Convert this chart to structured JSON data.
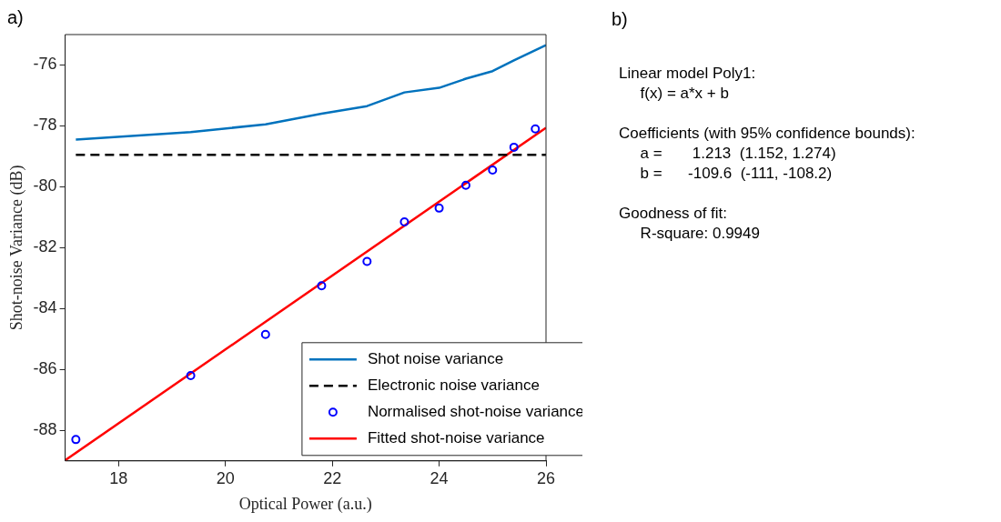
{
  "chart_data": {
    "type": "line",
    "xlabel": "Optical Power (a.u.)",
    "ylabel": "Shot-noise Variance (dB)",
    "xlim": [
      17,
      26
    ],
    "xticks": [
      18,
      20,
      22,
      24,
      26
    ],
    "ylim": [
      -89,
      -75
    ],
    "yticks": [
      -88,
      -86,
      -84,
      -82,
      -80,
      -78,
      -76
    ],
    "grid": false,
    "legend": "bottom right",
    "series": [
      {
        "name": "Shot noise variance",
        "color": "#0072bd",
        "line_style": "solid",
        "marker": "none",
        "x": [
          17.2,
          19.35,
          20.75,
          21.8,
          22.65,
          23.35,
          24,
          24.5,
          25,
          25.4,
          26
        ],
        "values": [
          -78.45,
          -78.2,
          -77.95,
          -77.6,
          -77.35,
          -76.9,
          -76.75,
          -76.45,
          -76.2,
          -75.85,
          -75.35
        ]
      },
      {
        "name": "Electronic noise variance",
        "color": "#000000",
        "line_style": "dashed",
        "marker": "none",
        "x": [
          17.2,
          26
        ],
        "values": [
          -78.95,
          -78.95
        ]
      },
      {
        "name": "Normalised shot-noise variance",
        "type": "scatter",
        "color": "#0000ff",
        "marker": "circle",
        "x": [
          17.2,
          19.35,
          20.75,
          21.8,
          22.65,
          23.35,
          24,
          24.5,
          25,
          25.4,
          25.8
        ],
        "values": [
          -88.3,
          -86.2,
          -84.85,
          -83.25,
          -82.45,
          -81.15,
          -80.7,
          -79.95,
          -79.45,
          -78.7,
          -78.1
        ]
      },
      {
        "name": "Fitted shot-noise variance",
        "color": "#ff0000",
        "line_style": "solid",
        "marker": "none",
        "x": [
          17,
          26
        ],
        "values": [
          -88.98,
          -78.06
        ]
      }
    ],
    "annotations": [
      "a)",
      "b)",
      "Linear model Poly1:\n     f(x) = a*x + b",
      "Coefficients (with 95% confidence bounds):\n     a =       1.213  (1.152, 1.274)\n     b =      -109.6  (-111, -108.2)",
      "Goodness of fit:\n     R-square: 0.9949"
    ]
  }
}
